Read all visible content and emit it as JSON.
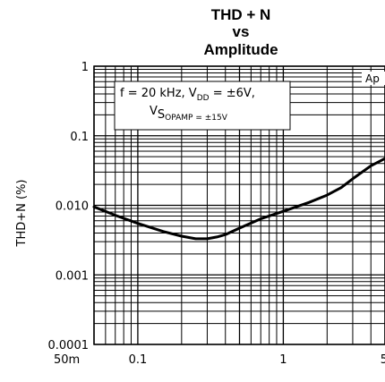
{
  "chart_data": {
    "type": "line",
    "title": [
      "THD + N",
      "vs",
      "Amplitude"
    ],
    "ylabel": "THD+N (%)",
    "xlabel": "",
    "x_scale": "log",
    "y_scale": "log",
    "xlim": [
      0.05,
      5
    ],
    "ylim": [
      0.0001,
      1
    ],
    "x_ticks": [
      {
        "value": 0.05,
        "label": "50m"
      },
      {
        "value": 0.1,
        "label": "0.1"
      },
      {
        "value": 1,
        "label": "1"
      },
      {
        "value": 5,
        "label": "5"
      }
    ],
    "y_ticks": [
      {
        "value": 1,
        "label": "1"
      },
      {
        "value": 0.1,
        "label": "0.1"
      },
      {
        "value": 0.01,
        "label": "0.010"
      },
      {
        "value": 0.001,
        "label": "0.001"
      },
      {
        "value": 0.0001,
        "label": "0.0001"
      }
    ],
    "grid": true,
    "annotation": {
      "line1_pre": "f = 20 kHz,  V",
      "line1_sub": "DD",
      "line1_post": " = ±6V,",
      "line2_pre": "V",
      "line2_sub": "S",
      "line2_sub2": "OPAMP = ±15V"
    },
    "corner_label": "Ap",
    "series": [
      {
        "x": [
          0.05,
          0.07,
          0.1,
          0.15,
          0.2,
          0.25,
          0.3,
          0.35,
          0.4,
          0.5,
          0.7,
          1.0,
          1.5,
          2.0,
          2.5,
          3.0,
          4.0,
          5.0
        ],
        "y": [
          0.0095,
          0.0072,
          0.0055,
          0.0042,
          0.0036,
          0.0033,
          0.0033,
          0.0035,
          0.0038,
          0.0047,
          0.0064,
          0.0082,
          0.011,
          0.014,
          0.018,
          0.024,
          0.037,
          0.047
        ]
      }
    ]
  }
}
